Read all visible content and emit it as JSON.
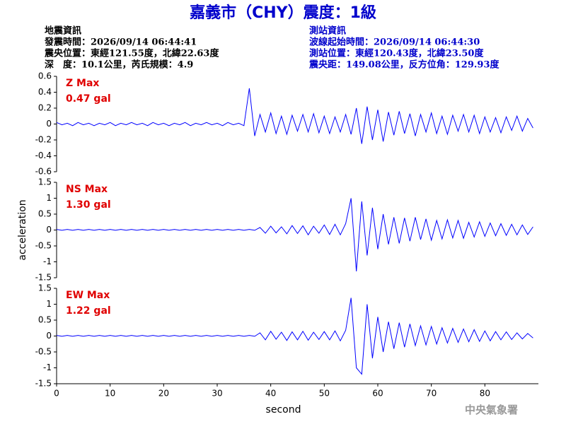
{
  "title": "嘉義市（CHY）震度：1級",
  "event_info": [
    "地震資訊",
    "發震時間：2026/09/14 06:44:41",
    "震央位置：東經121.55度，北緯22.63度",
    "深　度：10.1公里，芮氏規模：4.9"
  ],
  "station_info": [
    "測站資訊",
    "波線起始時間：2026/09/14 06:44:30",
    "測站位置：東經120.43度，北緯23.50度",
    "震央距：149.08公里，反方位角：129.93度"
  ],
  "footer": "中央氣象署",
  "chart_data": [
    {
      "type": "line",
      "annotations": [
        "Z Max",
        "0.47 gal"
      ],
      "color": "#0000ff",
      "xlim": [
        0,
        90
      ],
      "ylim": [
        -0.6,
        0.6
      ],
      "yticks": [
        0.6,
        0.4,
        0.2,
        0,
        -0.2,
        -0.4,
        -0.6
      ],
      "x": [
        0,
        1,
        2,
        3,
        4,
        5,
        6,
        7,
        8,
        9,
        10,
        11,
        12,
        13,
        14,
        15,
        16,
        17,
        18,
        19,
        20,
        21,
        22,
        23,
        24,
        25,
        26,
        27,
        28,
        29,
        30,
        31,
        32,
        33,
        34,
        35,
        36,
        37,
        38,
        39,
        40,
        41,
        42,
        43,
        44,
        45,
        46,
        47,
        48,
        49,
        50,
        51,
        52,
        53,
        54,
        55,
        56,
        57,
        58,
        59,
        60,
        61,
        62,
        63,
        64,
        65,
        66,
        67,
        68,
        69,
        70,
        71,
        72,
        73,
        74,
        75,
        76,
        77,
        78,
        79,
        80,
        81,
        82,
        83,
        84,
        85,
        86,
        87,
        88,
        89
      ],
      "values": [
        0.02,
        -0.01,
        0.01,
        -0.02,
        0.02,
        -0.01,
        0.01,
        -0.02,
        0.01,
        -0.01,
        0.02,
        -0.02,
        0.01,
        -0.01,
        0.02,
        -0.01,
        0.01,
        -0.02,
        0.02,
        -0.01,
        0.01,
        -0.02,
        0.01,
        -0.01,
        0.02,
        -0.02,
        0.01,
        -0.01,
        0.02,
        -0.01,
        0.01,
        -0.02,
        0.02,
        -0.01,
        0.01,
        -0.02,
        0.45,
        -0.15,
        0.12,
        -0.1,
        0.14,
        -0.12,
        0.1,
        -0.13,
        0.11,
        -0.09,
        0.12,
        -0.1,
        0.13,
        -0.11,
        0.1,
        -0.12,
        0.09,
        -0.1,
        0.12,
        -0.13,
        0.2,
        -0.25,
        0.22,
        -0.2,
        0.18,
        -0.22,
        0.15,
        -0.14,
        0.16,
        -0.12,
        0.13,
        -0.15,
        0.12,
        -0.1,
        0.14,
        -0.12,
        0.1,
        -0.13,
        0.11,
        -0.09,
        0.12,
        -0.1,
        0.11,
        -0.12,
        0.09,
        -0.1,
        0.08,
        -0.11,
        0.09,
        -0.08,
        0.1,
        -0.09,
        0.07,
        -0.05
      ]
    },
    {
      "type": "line",
      "annotations": [
        "NS Max",
        "1.30 gal"
      ],
      "color": "#0000ff",
      "xlim": [
        0,
        90
      ],
      "ylim": [
        -1.5,
        1.5
      ],
      "ylabel": "acceleration",
      "yticks": [
        1.5,
        1,
        0.5,
        0,
        -0.5,
        -1,
        -1.5
      ],
      "x": [
        0,
        1,
        2,
        3,
        4,
        5,
        6,
        7,
        8,
        9,
        10,
        11,
        12,
        13,
        14,
        15,
        16,
        17,
        18,
        19,
        20,
        21,
        22,
        23,
        24,
        25,
        26,
        27,
        28,
        29,
        30,
        31,
        32,
        33,
        34,
        35,
        36,
        37,
        38,
        39,
        40,
        41,
        42,
        43,
        44,
        45,
        46,
        47,
        48,
        49,
        50,
        51,
        52,
        53,
        54,
        55,
        56,
        57,
        58,
        59,
        60,
        61,
        62,
        63,
        64,
        65,
        66,
        67,
        68,
        69,
        70,
        71,
        72,
        73,
        74,
        75,
        76,
        77,
        78,
        79,
        80,
        81,
        82,
        83,
        84,
        85,
        86,
        87,
        88,
        89
      ],
      "values": [
        0.02,
        -0.01,
        0.02,
        -0.01,
        0.02,
        -0.01,
        0.02,
        -0.01,
        0.02,
        -0.01,
        0.02,
        -0.01,
        0.02,
        -0.01,
        0.02,
        -0.01,
        0.02,
        -0.01,
        0.02,
        -0.01,
        0.02,
        -0.01,
        0.02,
        -0.01,
        0.02,
        -0.01,
        0.02,
        -0.01,
        0.02,
        -0.01,
        0.02,
        -0.01,
        0.02,
        -0.01,
        0.02,
        -0.01,
        0.02,
        -0.01,
        0.08,
        -0.1,
        0.12,
        -0.09,
        0.1,
        -0.12,
        0.14,
        -0.11,
        0.13,
        -0.15,
        0.12,
        -0.1,
        0.16,
        -0.14,
        0.18,
        -0.15,
        0.2,
        1.0,
        -1.3,
        0.9,
        -0.8,
        0.7,
        -0.6,
        0.5,
        -0.45,
        0.4,
        -0.42,
        0.38,
        -0.35,
        0.4,
        -0.3,
        0.35,
        -0.32,
        0.3,
        -0.28,
        0.32,
        -0.25,
        0.3,
        -0.26,
        0.24,
        -0.22,
        0.26,
        -0.2,
        0.22,
        -0.18,
        0.2,
        -0.17,
        0.18,
        -0.15,
        0.16,
        -0.14,
        0.1
      ]
    },
    {
      "type": "line",
      "annotations": [
        "EW Max",
        "1.22 gal"
      ],
      "color": "#0000ff",
      "xlim": [
        0,
        90
      ],
      "ylim": [
        -1.5,
        1.5
      ],
      "xlabel": "second",
      "yticks": [
        1.5,
        1,
        0.5,
        0,
        -0.5,
        -1,
        -1.5
      ],
      "xticks": [
        0,
        10,
        20,
        30,
        40,
        50,
        60,
        70,
        80
      ],
      "x": [
        0,
        1,
        2,
        3,
        4,
        5,
        6,
        7,
        8,
        9,
        10,
        11,
        12,
        13,
        14,
        15,
        16,
        17,
        18,
        19,
        20,
        21,
        22,
        23,
        24,
        25,
        26,
        27,
        28,
        29,
        30,
        31,
        32,
        33,
        34,
        35,
        36,
        37,
        38,
        39,
        40,
        41,
        42,
        43,
        44,
        45,
        46,
        47,
        48,
        49,
        50,
        51,
        52,
        53,
        54,
        55,
        56,
        57,
        58,
        59,
        60,
        61,
        62,
        63,
        64,
        65,
        66,
        67,
        68,
        69,
        70,
        71,
        72,
        73,
        74,
        75,
        76,
        77,
        78,
        79,
        80,
        81,
        82,
        83,
        84,
        85,
        86,
        87,
        88,
        89
      ],
      "values": [
        0.02,
        -0.01,
        0.02,
        -0.01,
        0.02,
        -0.01,
        0.02,
        -0.01,
        0.02,
        -0.01,
        0.02,
        -0.01,
        0.02,
        -0.01,
        0.02,
        -0.01,
        0.02,
        -0.01,
        0.02,
        -0.01,
        0.02,
        -0.01,
        0.02,
        -0.01,
        0.02,
        -0.01,
        0.02,
        -0.01,
        0.02,
        -0.01,
        0.02,
        -0.01,
        0.02,
        -0.01,
        0.02,
        -0.01,
        0.02,
        -0.01,
        0.1,
        -0.12,
        0.15,
        -0.1,
        0.12,
        -0.14,
        0.13,
        -0.12,
        0.15,
        -0.13,
        0.12,
        -0.11,
        0.14,
        -0.12,
        0.16,
        -0.15,
        0.18,
        1.2,
        -1.0,
        -1.2,
        1.0,
        -0.7,
        0.6,
        -0.5,
        0.45,
        -0.4,
        0.42,
        -0.35,
        0.38,
        -0.3,
        0.32,
        -0.28,
        0.3,
        -0.25,
        0.26,
        -0.22,
        0.24,
        -0.2,
        0.22,
        -0.18,
        0.2,
        -0.17,
        0.16,
        -0.15,
        0.14,
        -0.12,
        0.13,
        -0.11,
        0.1,
        -0.09,
        0.08,
        -0.06
      ]
    }
  ]
}
